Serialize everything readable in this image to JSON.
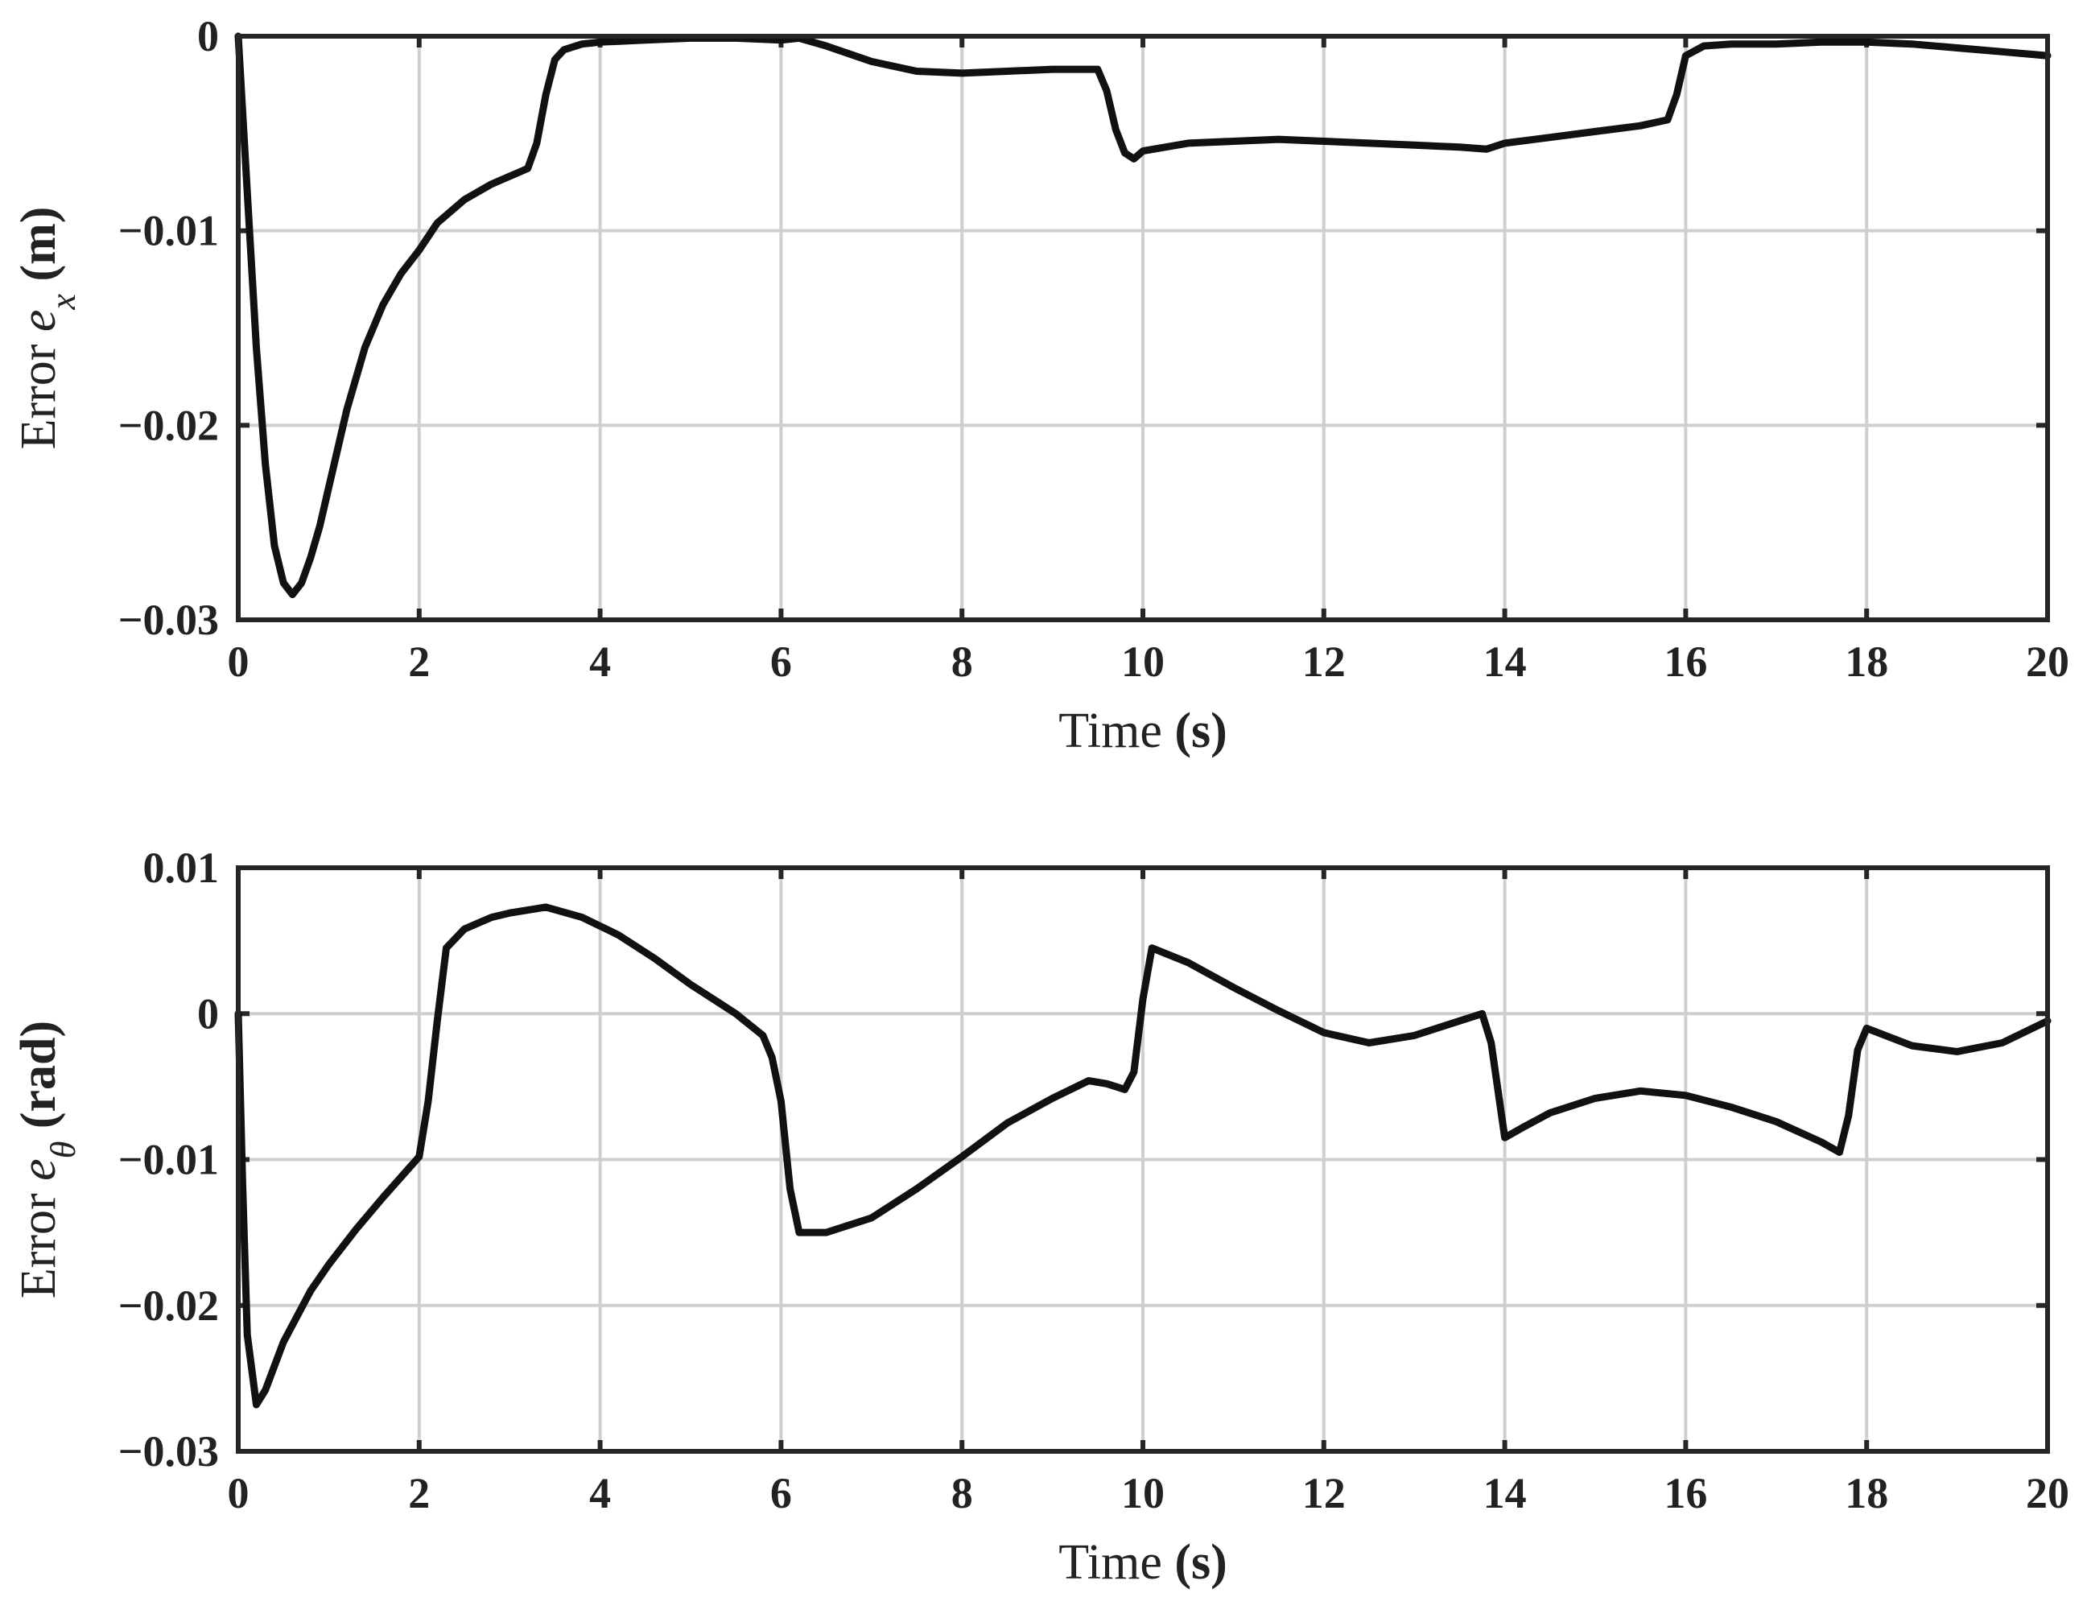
{
  "chart_data": [
    {
      "type": "line",
      "xlabel": {
        "text": "Time",
        "unit": "(s)"
      },
      "ylabel": {
        "prefix": "Error ",
        "symbol": "e",
        "subscript": "x",
        "unit": "(m)"
      },
      "xlim": [
        0,
        20
      ],
      "ylim": [
        -0.03,
        0
      ],
      "xticks": [
        0,
        2,
        4,
        6,
        8,
        10,
        12,
        14,
        16,
        18,
        20
      ],
      "yticks": [
        -0.03,
        -0.02,
        -0.01,
        0
      ],
      "xtick_labels": [
        "0",
        "2",
        "4",
        "6",
        "8",
        "10",
        "12",
        "14",
        "16",
        "18",
        "20"
      ],
      "ytick_labels": [
        "−0.03",
        "−0.02",
        "−0.01",
        "0"
      ],
      "grid": true,
      "series": [
        {
          "x": [
            0,
            0.1,
            0.2,
            0.3,
            0.4,
            0.5,
            0.6,
            0.7,
            0.8,
            0.9,
            1.0,
            1.2,
            1.4,
            1.6,
            1.8,
            2.0,
            2.2,
            2.5,
            2.8,
            3.0,
            3.2,
            3.3,
            3.4,
            3.5,
            3.6,
            3.8,
            4.0,
            4.5,
            5.0,
            5.5,
            6.0,
            6.2,
            6.5,
            7.0,
            7.5,
            8.0,
            8.5,
            9.0,
            9.5,
            9.6,
            9.7,
            9.8,
            9.9,
            10.0,
            10.5,
            11.0,
            11.5,
            12.0,
            12.5,
            13.0,
            13.5,
            13.8,
            14.0,
            14.5,
            15.0,
            15.5,
            15.8,
            15.9,
            16.0,
            16.2,
            16.5,
            17.0,
            17.5,
            18.0,
            18.5,
            19.0,
            19.5,
            20.0
          ],
          "y": [
            0,
            -0.008,
            -0.016,
            -0.022,
            -0.0262,
            -0.0281,
            -0.0287,
            -0.0281,
            -0.0268,
            -0.0252,
            -0.0232,
            -0.0192,
            -0.016,
            -0.0138,
            -0.0122,
            -0.011,
            -0.0096,
            -0.0084,
            -0.0076,
            -0.0072,
            -0.0068,
            -0.0055,
            -0.003,
            -0.0012,
            -0.0007,
            -0.0004,
            -0.0003,
            -0.0002,
            -0.0001,
            -0.0001,
            -0.0002,
            -0.0001,
            -0.0005,
            -0.0013,
            -0.0018,
            -0.0019,
            -0.0018,
            -0.0017,
            -0.0017,
            -0.0028,
            -0.0048,
            -0.006,
            -0.0063,
            -0.0059,
            -0.0055,
            -0.0054,
            -0.0053,
            -0.0054,
            -0.0055,
            -0.0056,
            -0.0057,
            -0.0058,
            -0.0055,
            -0.0052,
            -0.0049,
            -0.0046,
            -0.0043,
            -0.003,
            -0.001,
            -0.0005,
            -0.0004,
            -0.0004,
            -0.0003,
            -0.0003,
            -0.0004,
            -0.0006,
            -0.0008,
            -0.001
          ]
        }
      ]
    },
    {
      "type": "line",
      "xlabel": {
        "text": "Time",
        "unit": "(s)"
      },
      "ylabel": {
        "prefix": "Error ",
        "symbol": "e",
        "subscript": "θ",
        "unit": "(rad)"
      },
      "xlim": [
        0,
        20
      ],
      "ylim": [
        -0.03,
        0.01
      ],
      "xticks": [
        0,
        2,
        4,
        6,
        8,
        10,
        12,
        14,
        16,
        18,
        20
      ],
      "yticks": [
        -0.03,
        -0.02,
        -0.01,
        0,
        0.01
      ],
      "xtick_labels": [
        "0",
        "2",
        "4",
        "6",
        "8",
        "10",
        "12",
        "14",
        "16",
        "18",
        "20"
      ],
      "ytick_labels": [
        "−0.03",
        "−0.02",
        "−0.01",
        "0",
        "0.01"
      ],
      "grid": true,
      "series": [
        {
          "x": [
            0,
            0.05,
            0.1,
            0.2,
            0.3,
            0.5,
            0.8,
            1.0,
            1.3,
            1.6,
            1.8,
            2.0,
            2.1,
            2.2,
            2.3,
            2.5,
            2.8,
            3.0,
            3.4,
            3.8,
            4.2,
            4.6,
            5.0,
            5.5,
            5.8,
            5.9,
            6.0,
            6.1,
            6.2,
            6.5,
            7.0,
            7.5,
            8.0,
            8.5,
            9.0,
            9.4,
            9.6,
            9.8,
            9.9,
            10.0,
            10.1,
            10.5,
            11.0,
            11.5,
            12.0,
            12.5,
            13.0,
            13.5,
            13.75,
            13.85,
            14.0,
            14.2,
            14.5,
            15.0,
            15.5,
            16.0,
            16.5,
            17.0,
            17.5,
            17.7,
            17.8,
            17.9,
            18.0,
            18.5,
            19.0,
            19.5,
            20.0
          ],
          "y": [
            0,
            -0.012,
            -0.022,
            -0.0268,
            -0.0258,
            -0.0225,
            -0.019,
            -0.0172,
            -0.0148,
            -0.0126,
            -0.0112,
            -0.0098,
            -0.006,
            -0.0005,
            0.0045,
            0.0058,
            0.0066,
            0.0069,
            0.0073,
            0.0066,
            0.0054,
            0.0038,
            0.002,
            0.0,
            -0.0015,
            -0.003,
            -0.006,
            -0.012,
            -0.015,
            -0.015,
            -0.014,
            -0.012,
            -0.0098,
            -0.0075,
            -0.0058,
            -0.0046,
            -0.0048,
            -0.0052,
            -0.004,
            0.001,
            0.0045,
            0.0035,
            0.0018,
            0.0002,
            -0.0013,
            -0.002,
            -0.0015,
            -0.0005,
            0.0,
            -0.002,
            -0.0085,
            -0.0078,
            -0.0068,
            -0.0058,
            -0.0053,
            -0.0056,
            -0.0064,
            -0.0074,
            -0.0088,
            -0.0095,
            -0.007,
            -0.0025,
            -0.001,
            -0.0022,
            -0.0026,
            -0.002,
            -0.0005
          ]
        }
      ]
    }
  ]
}
